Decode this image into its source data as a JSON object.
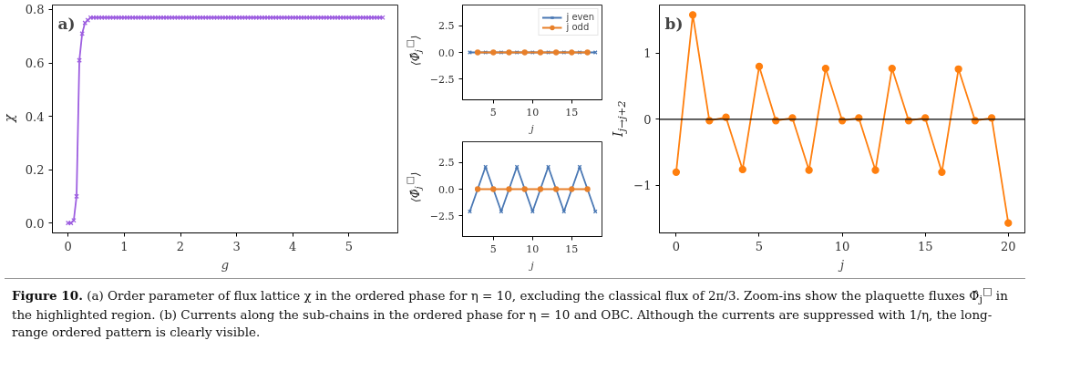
{
  "chart_data": [
    {
      "type": "line",
      "title": "a)",
      "xlabel": "g",
      "ylabel": "χ",
      "x": [
        0,
        0.05,
        0.1,
        0.15,
        0.2,
        0.25,
        0.3,
        0.35,
        0.4,
        0.45,
        0.5,
        0.55,
        0.6,
        0.65,
        0.7,
        0.75,
        0.8,
        0.85,
        0.9,
        0.95,
        1,
        1.05,
        1.1,
        1.15,
        1.2,
        1.25,
        1.3,
        1.35,
        1.4,
        1.45,
        1.5,
        1.55,
        1.6,
        1.65,
        1.7,
        1.75,
        1.8,
        1.85,
        1.9,
        1.95,
        2,
        2.05,
        2.1,
        2.15,
        2.2,
        2.25,
        2.3,
        2.35,
        2.4,
        2.45,
        2.5,
        2.55,
        2.6,
        2.65,
        2.7,
        2.75,
        2.8,
        2.85,
        2.9,
        2.95,
        3,
        3.05,
        3.1,
        3.15,
        3.2,
        3.25,
        3.3,
        3.35,
        3.4,
        3.45,
        3.5,
        3.55,
        3.6,
        3.65,
        3.7,
        3.75,
        3.8,
        3.85,
        3.9,
        3.95,
        4,
        4.05,
        4.1,
        4.15,
        4.2,
        4.25,
        4.3,
        4.35,
        4.4,
        4.45,
        4.5,
        4.55,
        4.6,
        4.65,
        4.7,
        4.75,
        4.8,
        4.85,
        4.9,
        4.95,
        5,
        5.05,
        5.1,
        5.15,
        5.2,
        5.25,
        5.3,
        5.35,
        5.4,
        5.45,
        5.5,
        5.55,
        5.6
      ],
      "series": [
        {
          "color": "#9d5ee0",
          "marker": "cross",
          "values": [
            0,
            0,
            0.01,
            0.1,
            0.61,
            0.71,
            0.75,
            0.76,
            0.77,
            0.77,
            0.77,
            0.77,
            0.77,
            0.77,
            0.77,
            0.77,
            0.77,
            0.77,
            0.77,
            0.77,
            0.77,
            0.77,
            0.77,
            0.77,
            0.77,
            0.77,
            0.77,
            0.77,
            0.77,
            0.77,
            0.77,
            0.77,
            0.77,
            0.77,
            0.77,
            0.77,
            0.77,
            0.77,
            0.77,
            0.77,
            0.77,
            0.77,
            0.77,
            0.77,
            0.77,
            0.77,
            0.77,
            0.77,
            0.77,
            0.77,
            0.77,
            0.77,
            0.77,
            0.77,
            0.77,
            0.77,
            0.77,
            0.77,
            0.77,
            0.77,
            0.77,
            0.77,
            0.77,
            0.77,
            0.77,
            0.77,
            0.77,
            0.77,
            0.77,
            0.77,
            0.77,
            0.77,
            0.77,
            0.77,
            0.77,
            0.77,
            0.77,
            0.77,
            0.77,
            0.77,
            0.77,
            0.77,
            0.77,
            0.77,
            0.77,
            0.77,
            0.77,
            0.77,
            0.77,
            0.77,
            0.77,
            0.77,
            0.77,
            0.77,
            0.77,
            0.77,
            0.77,
            0.77,
            0.77,
            0.77,
            0.77,
            0.77,
            0.77,
            0.77,
            0.77,
            0.77,
            0.77,
            0.77,
            0.77,
            0.77,
            0.77,
            0.77,
            0.77
          ]
        }
      ],
      "xlim": [
        -0.28,
        5.87
      ],
      "ylim": [
        -0.037,
        0.817
      ],
      "xticks": [
        0,
        1,
        2,
        3,
        4,
        5
      ],
      "yticks": [
        {
          "value": 0,
          "label": "0.0"
        },
        0.2,
        0.4,
        0.6,
        0.8
      ],
      "annotations": [
        "Figure 10. (a) Order parameter of flux lattice χ in the ordered phase for η = 10, excluding the classical flux of 2π/3. Zoom-ins show the plaquette fluxes Φ̂$_{j}$$^{□}$ in the highlighted region. (b) Currents along the sub-chains in the ordered phase for η = 10 and OBC. Although the currents are suppressed with 1/η, the long-range ordered pattern is clearly visible."
      ]
    },
    {
      "type": "line",
      "xlabel": "j",
      "ylabel": "⟨Φ̂$_{j}$$^{□}$⟩",
      "legend": "top right",
      "series": [
        {
          "name": "j even",
          "color": "#4a78b4",
          "marker": "cross",
          "x": [
            2,
            4,
            6,
            8,
            10,
            12,
            14,
            16,
            18
          ],
          "values": [
            0,
            0,
            0,
            0,
            0,
            0,
            0,
            0,
            0
          ]
        },
        {
          "name": "j odd",
          "color": "#e8802a",
          "marker": "circle",
          "x": [
            3,
            5,
            7,
            9,
            11,
            13,
            15,
            17
          ],
          "values": [
            0,
            0,
            0,
            0,
            0,
            0,
            0,
            0
          ]
        }
      ],
      "xlim": [
        1.07,
        18.85
      ],
      "ylim": [
        -4.45,
        4.45
      ],
      "xticks": [
        5,
        10,
        15
      ],
      "yticks": [
        {
          "value": -2.5,
          "label": "−2.5"
        },
        {
          "value": 0,
          "label": "0.0"
        },
        2.5
      ]
    },
    {
      "type": "line",
      "xlabel": "j",
      "ylabel": "⟨Φ̂$_{j}$$^{□}$⟩",
      "series": [
        {
          "color": "#4a78b4",
          "marker": "cross",
          "x": [
            2,
            4,
            6,
            8,
            10,
            12,
            14,
            16,
            18
          ],
          "values": [
            -2.1,
            2.1,
            -2.1,
            2.1,
            -2.1,
            2.1,
            -2.1,
            2.1,
            -2.1
          ]
        },
        {
          "color": "#e8802a",
          "marker": "circle",
          "x": [
            3,
            5,
            7,
            9,
            11,
            13,
            15,
            17
          ],
          "values": [
            0,
            0,
            0,
            0,
            0,
            0,
            0,
            0
          ]
        }
      ],
      "xlim": [
        1.07,
        18.85
      ],
      "ylim": [
        -4.45,
        4.45
      ],
      "xticks": [
        5,
        10,
        15
      ],
      "yticks": [
        {
          "value": -2.5,
          "label": "−2.5"
        },
        {
          "value": 0,
          "label": "0.0"
        },
        2.5
      ]
    },
    {
      "type": "line",
      "title": "b)",
      "xlabel": "j",
      "ylabel": "I$_{j→j+2}$",
      "x": [
        0,
        1,
        2,
        3,
        4,
        5,
        6,
        7,
        8,
        9,
        10,
        11,
        12,
        13,
        14,
        15,
        16,
        17,
        18,
        19,
        20
      ],
      "series": [
        {
          "color": "#ff7f0e",
          "marker": "circle",
          "values": [
            -0.8,
            1.58,
            -0.02,
            0.03,
            -0.76,
            0.8,
            -0.02,
            0.02,
            -0.77,
            0.77,
            -0.02,
            0.02,
            -0.77,
            0.77,
            -0.02,
            0.02,
            -0.8,
            0.76,
            -0.02,
            0.02,
            -1.57
          ]
        }
      ],
      "xlim": [
        -1.01,
        21.0
      ],
      "ylim": [
        -1.72,
        1.73
      ],
      "xticks": [
        0,
        5,
        10,
        15,
        20
      ],
      "yticks": [
        {
          "value": -1,
          "label": "−1"
        },
        0,
        1
      ],
      "ref_lines": [
        {
          "axis": "y",
          "value": 0,
          "color": "#000000"
        }
      ]
    }
  ]
}
